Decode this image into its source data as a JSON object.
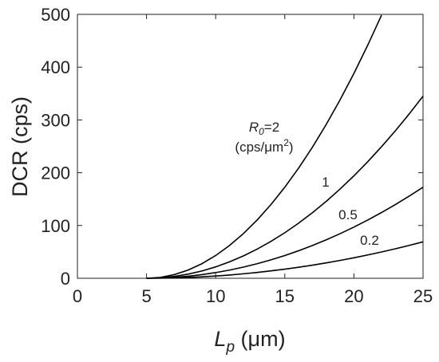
{
  "chart_data": {
    "type": "line",
    "ylabel": "DCR (cps)",
    "xlabel": {
      "symbol": "L",
      "subscript": "p",
      "unit": " (μm)"
    },
    "x": [
      5,
      6,
      7,
      8,
      9,
      10,
      11,
      12,
      13,
      14,
      15,
      16,
      17,
      18,
      19,
      20,
      21,
      22,
      23,
      24,
      25
    ],
    "series": [
      {
        "color": "#000000",
        "values": [
          0,
          1.7,
          6.9,
          15.5,
          27.6,
          43.1,
          62.1,
          84.5,
          110.4,
          139.7,
          172.5,
          208.7,
          248.4,
          291.5,
          338.1,
          388.1,
          441.6,
          498.6,
          null,
          null,
          null
        ]
      },
      {
        "color": "#000000",
        "values": [
          0,
          0.9,
          3.5,
          7.8,
          13.8,
          21.6,
          31.1,
          42.3,
          55.2,
          69.9,
          86.3,
          104.4,
          124.2,
          145.8,
          169.1,
          194.1,
          220.8,
          249.3,
          279.5,
          311.4,
          345
        ]
      },
      {
        "color": "#000000",
        "values": [
          0,
          0.4,
          1.7,
          3.9,
          6.9,
          10.8,
          15.5,
          21.1,
          27.6,
          34.9,
          43.1,
          52.2,
          62.1,
          72.9,
          84.5,
          97,
          110.4,
          124.6,
          139.7,
          155.7,
          172.5
        ]
      },
      {
        "color": "#000000",
        "values": [
          0,
          0.2,
          0.7,
          1.6,
          2.8,
          4.3,
          6.2,
          8.5,
          11,
          14,
          17.3,
          20.9,
          24.8,
          29.2,
          33.8,
          38.8,
          44.2,
          49.9,
          55.9,
          62.3,
          69
        ]
      }
    ],
    "curve_label": {
      "symbol": "R",
      "subscript": "0",
      "text": "=2",
      "unit": "(cps/μm",
      "unit_superscript": "2",
      "unit_close": ")"
    },
    "annotations": [
      "1",
      "0.5",
      "0.2"
    ],
    "xlim": [
      0,
      25
    ],
    "xticks": [
      0,
      5,
      10,
      15,
      20,
      25
    ],
    "ylim": [
      0,
      500
    ],
    "yticks": [
      0,
      100,
      200,
      300,
      400,
      500
    ]
  }
}
